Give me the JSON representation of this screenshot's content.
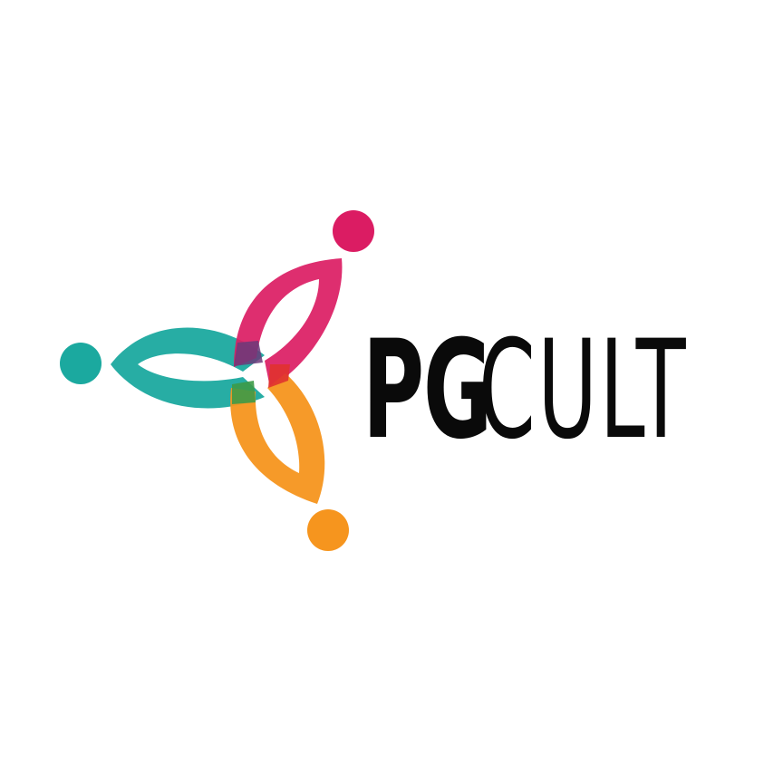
{
  "logo": {
    "brand_bold": "PG",
    "brand_light": "CULT",
    "colors": {
      "teal": "#1BA99F",
      "magenta": "#DB1C63",
      "orange": "#F6951E",
      "text": "#0A0A0A",
      "background": "#FFFFFF"
    },
    "icon": "three-petal-people-icon"
  }
}
